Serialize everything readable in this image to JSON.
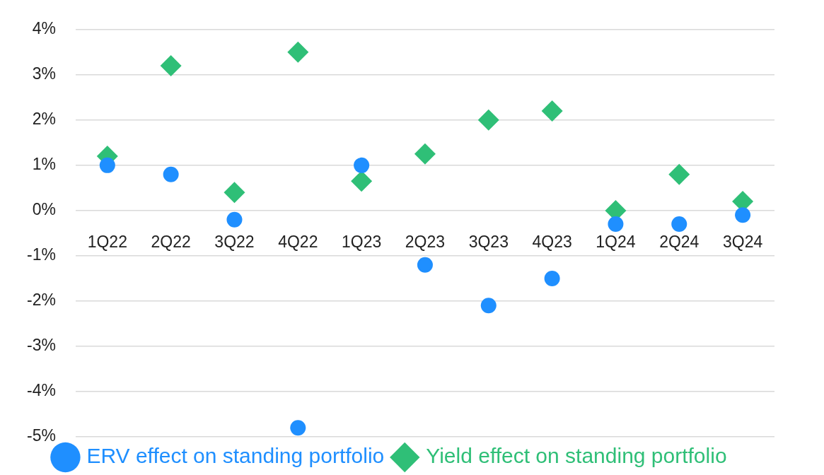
{
  "chart_data": {
    "type": "scatter",
    "categories": [
      "1Q22",
      "2Q22",
      "3Q22",
      "4Q22",
      "1Q23",
      "2Q23",
      "3Q23",
      "4Q23",
      "1Q24",
      "2Q24",
      "3Q24"
    ],
    "series": [
      {
        "name": "ERV effect on standing portfolio",
        "color": "#1f8fff",
        "marker": "circle",
        "values": [
          1.0,
          0.8,
          -0.2,
          -4.8,
          1.0,
          -1.2,
          -2.1,
          -1.5,
          -0.3,
          -0.3,
          -0.1
        ]
      },
      {
        "name": "Yield effect on standing portfolio",
        "color": "#2fbf77",
        "marker": "diamond",
        "values": [
          1.2,
          3.2,
          0.4,
          3.5,
          0.65,
          1.25,
          2.0,
          2.2,
          0.0,
          0.8,
          0.2
        ]
      }
    ],
    "ylim": [
      -5,
      4
    ],
    "yticks": [
      {
        "value": -5,
        "label": "-5%"
      },
      {
        "value": -4,
        "label": "-4%"
      },
      {
        "value": -3,
        "label": "-3%"
      },
      {
        "value": -2,
        "label": "-2%"
      },
      {
        "value": -1,
        "label": "-1%"
      },
      {
        "value": 0,
        "label": "0%"
      },
      {
        "value": 1,
        "label": "1%"
      },
      {
        "value": 2,
        "label": "2%"
      },
      {
        "value": 3,
        "label": "3%"
      },
      {
        "value": 4,
        "label": "4%"
      }
    ],
    "grid": "y",
    "legend": "bottom"
  }
}
